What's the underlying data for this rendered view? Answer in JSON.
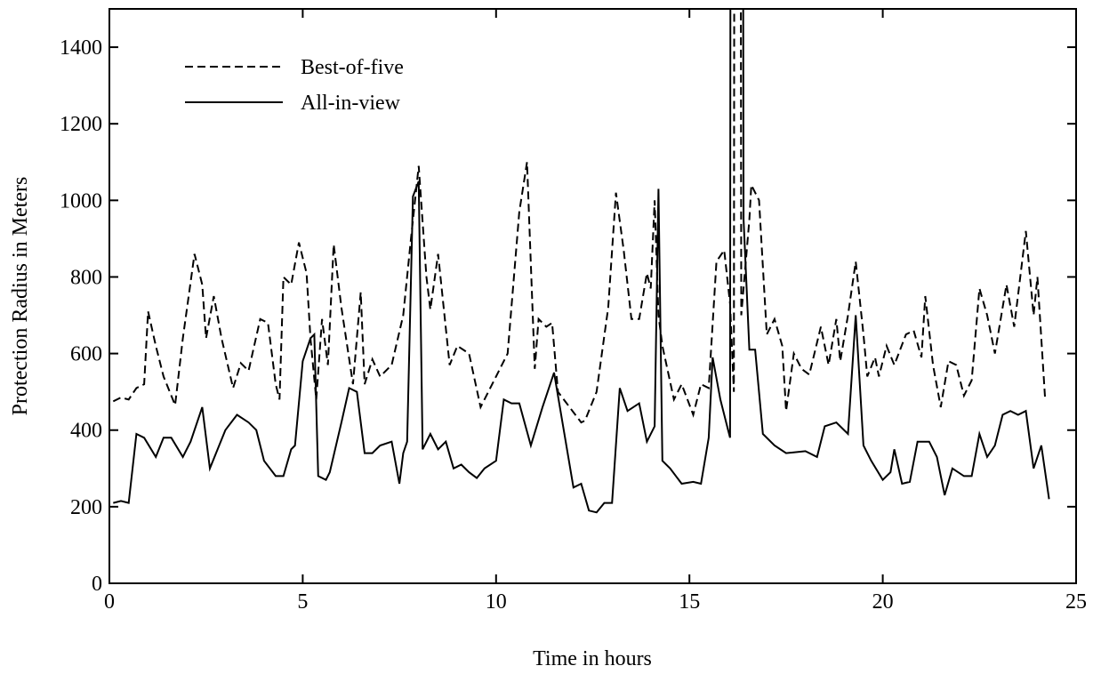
{
  "chart_data": {
    "type": "line",
    "xlabel": "Time in hours",
    "ylabel": "Protection Radius in Meters",
    "xlim": [
      0,
      25
    ],
    "xticks": [
      0,
      5,
      10,
      15,
      20,
      25
    ],
    "ylim": [
      0,
      1500
    ],
    "yticks": [
      0,
      200,
      400,
      600,
      800,
      1000,
      1200,
      1400
    ],
    "legend": "upper left",
    "series": [
      {
        "name": "Best-of-five",
        "color": "#000000",
        "dash": "dashed",
        "x": [
          0.1,
          0.3,
          0.5,
          0.7,
          0.9,
          1.0,
          1.2,
          1.4,
          1.7,
          1.9,
          2.2,
          2.4,
          2.5,
          2.7,
          2.9,
          3.2,
          3.4,
          3.6,
          3.9,
          4.1,
          4.3,
          4.4,
          4.5,
          4.7,
          4.9,
          5.1,
          5.2,
          5.35,
          5.5,
          5.65,
          5.8,
          6.0,
          6.3,
          6.5,
          6.6,
          6.8,
          7.0,
          7.3,
          7.6,
          7.8,
          8.0,
          8.2,
          8.3,
          8.5,
          8.8,
          9.0,
          9.3,
          9.6,
          10.0,
          10.3,
          10.6,
          10.8,
          11.0,
          11.1,
          11.3,
          11.45,
          11.6,
          12.2,
          12.3,
          12.6,
          12.9,
          13.1,
          13.3,
          13.5,
          13.7,
          13.9,
          14.0,
          14.1,
          14.2,
          14.3,
          14.6,
          14.8,
          15.1,
          15.3,
          15.5,
          15.7,
          15.9,
          16.05,
          16.15,
          16.16,
          16.33,
          16.34,
          16.55,
          16.6,
          16.8,
          17.0,
          17.2,
          17.4,
          17.5,
          17.7,
          17.9,
          18.1,
          18.4,
          18.6,
          18.8,
          18.9,
          19.1,
          19.3,
          19.5,
          19.6,
          19.8,
          19.9,
          20.1,
          20.3,
          20.6,
          20.8,
          21.0,
          21.1,
          21.3,
          21.5,
          21.7,
          21.9,
          22.1,
          22.3,
          22.5,
          22.7,
          22.9,
          23.2,
          23.4,
          23.7,
          23.9,
          24.0,
          24.2
        ],
        "values": [
          475,
          485,
          480,
          510,
          520,
          710,
          620,
          540,
          465,
          640,
          860,
          780,
          640,
          750,
          640,
          510,
          575,
          555,
          690,
          680,
          520,
          480,
          800,
          780,
          890,
          810,
          640,
          480,
          690,
          570,
          885,
          720,
          520,
          760,
          520,
          585,
          540,
          570,
          700,
          900,
          1090,
          800,
          715,
          860,
          570,
          620,
          600,
          460,
          540,
          600,
          970,
          1100,
          560,
          690,
          670,
          680,
          500,
          420,
          425,
          500,
          720,
          1020,
          870,
          690,
          690,
          810,
          770,
          1000,
          700,
          620,
          480,
          520,
          440,
          520,
          510,
          840,
          870,
          730,
          500,
          1600,
          1600,
          700,
          950,
          1040,
          1000,
          650,
          690,
          620,
          450,
          600,
          560,
          545,
          670,
          570,
          690,
          580,
          700,
          840,
          650,
          540,
          590,
          540,
          620,
          570,
          650,
          660,
          590,
          750,
          570,
          460,
          580,
          570,
          490,
          530,
          770,
          700,
          600,
          780,
          670,
          920,
          700,
          800,
          480
        ]
      },
      {
        "name": "All-in-view",
        "color": "#000000",
        "dash": "solid",
        "x": [
          0.1,
          0.3,
          0.5,
          0.7,
          0.9,
          1.2,
          1.4,
          1.6,
          1.9,
          2.1,
          2.4,
          2.6,
          3.0,
          3.3,
          3.6,
          3.8,
          4.0,
          4.3,
          4.5,
          4.7,
          4.8,
          5.0,
          5.2,
          5.3,
          5.4,
          5.6,
          5.7,
          6.0,
          6.2,
          6.4,
          6.6,
          6.8,
          7.0,
          7.3,
          7.5,
          7.6,
          7.7,
          7.85,
          8.0,
          8.1,
          8.3,
          8.5,
          8.7,
          8.9,
          9.1,
          9.3,
          9.5,
          9.7,
          10.0,
          10.2,
          10.4,
          10.6,
          10.9,
          11.2,
          11.5,
          11.8,
          12.0,
          12.2,
          12.4,
          12.6,
          12.8,
          13.0,
          13.2,
          13.4,
          13.7,
          13.9,
          14.1,
          14.2,
          14.3,
          14.5,
          14.8,
          15.1,
          15.3,
          15.5,
          15.6,
          15.8,
          16.0,
          16.05,
          16.06,
          16.39,
          16.4,
          16.55,
          16.7,
          16.9,
          17.2,
          17.5,
          18.0,
          18.3,
          18.5,
          18.8,
          19.1,
          19.3,
          19.5,
          19.7,
          20.0,
          20.2,
          20.3,
          20.5,
          20.7,
          20.9,
          21.2,
          21.4,
          21.6,
          21.8,
          22.1,
          22.3,
          22.5,
          22.7,
          22.9,
          23.1,
          23.3,
          23.5,
          23.7,
          23.9,
          24.1,
          24.3
        ],
        "values": [
          210,
          215,
          210,
          390,
          380,
          330,
          380,
          380,
          330,
          370,
          460,
          300,
          400,
          440,
          420,
          400,
          320,
          280,
          280,
          350,
          360,
          580,
          640,
          650,
          280,
          270,
          290,
          420,
          510,
          500,
          340,
          340,
          360,
          370,
          260,
          340,
          370,
          1010,
          1050,
          350,
          390,
          350,
          370,
          300,
          310,
          290,
          275,
          300,
          320,
          480,
          470,
          470,
          360,
          460,
          550,
          370,
          250,
          260,
          190,
          185,
          210,
          210,
          510,
          450,
          470,
          370,
          410,
          1030,
          320,
          300,
          260,
          265,
          260,
          380,
          590,
          480,
          400,
          380,
          1600,
          1600,
          950,
          610,
          610,
          390,
          360,
          340,
          345,
          330,
          410,
          420,
          390,
          700,
          360,
          320,
          270,
          290,
          350,
          260,
          265,
          370,
          370,
          330,
          230,
          300,
          280,
          280,
          390,
          330,
          360,
          440,
          450,
          440,
          450,
          300,
          360,
          220
        ]
      }
    ]
  }
}
